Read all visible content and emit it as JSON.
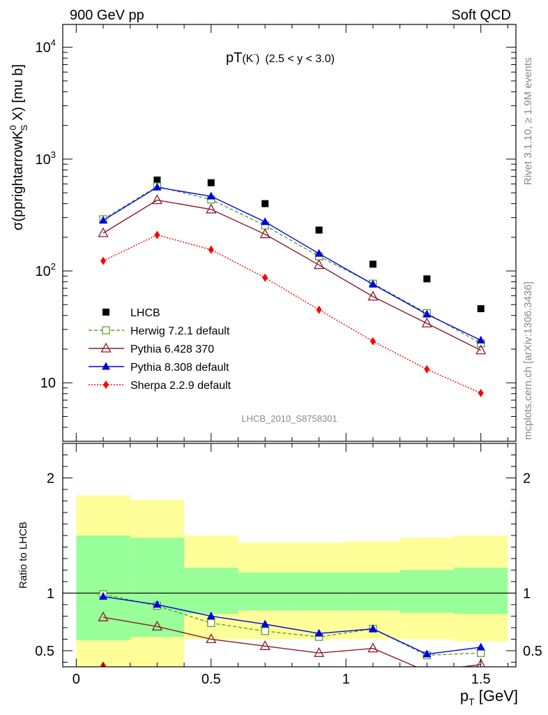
{
  "header": {
    "left": "900 GeV pp",
    "right": "Soft QCD"
  },
  "side_labels": {
    "rivet": "Rivet 3.1.10, ≥ 1.9M events",
    "mcplots": "mcplots.cern.ch [arXiv:1306.3436]"
  },
  "chart_data": [
    {
      "type": "scatter",
      "panel": "main",
      "title": "pT",
      "title_sub": "(K",
      "title_sup": "-",
      "title_close": ")",
      "title_range": "(2.5 < y < 3.0)",
      "ylabel": "σ(pprightarrowK",
      "ylabel_sup": "0",
      "ylabel_sub": "S",
      "ylabel_end": " X) [mu b]",
      "yscale": "log",
      "ylim": [
        3,
        16000
      ],
      "xlim": [
        -0.05,
        1.63
      ],
      "watermark": "LHCB_2010_S8758301",
      "ytick_labels": [
        {
          "value": 10,
          "base": "10",
          "exp": ""
        },
        {
          "value": 100,
          "base": "10",
          "exp": "2"
        },
        {
          "value": 1000,
          "base": "10",
          "exp": "3"
        },
        {
          "value": 10000,
          "base": "10",
          "exp": "4"
        }
      ],
      "legend_position": "lower-left",
      "x": [
        0.1,
        0.3,
        0.5,
        0.7,
        0.9,
        1.1,
        1.3,
        1.5
      ],
      "series": [
        {
          "name": "LHCB",
          "color": "#000000",
          "marker": "square",
          "line": "none",
          "values": [
            290,
            650,
            615,
            400,
            232,
            115,
            85,
            46
          ]
        },
        {
          "name": "Herwig 7.2.1 default",
          "color": "#5aa02c",
          "marker": "open-square",
          "line": "dashed",
          "values": [
            290,
            570,
            435,
            255,
            135,
            77,
            42,
            22.5
          ]
        },
        {
          "name": "Pythia 6.428 370",
          "color": "#8b1a2b",
          "marker": "open-triangle",
          "line": "solid",
          "values": [
            218,
            430,
            355,
            213,
            113,
            59,
            34,
            19.5
          ]
        },
        {
          "name": "Pythia 8.308 default",
          "color": "#0000dd",
          "marker": "triangle",
          "line": "solid",
          "values": [
            283,
            560,
            465,
            275,
            143,
            76,
            41,
            24
          ]
        },
        {
          "name": "Sherpa 2.2.9 default",
          "color": "#ff0000",
          "marker": "diamond",
          "line": "dotted",
          "values": [
            123,
            210,
            155,
            87,
            45,
            23.5,
            13.2,
            8.1
          ]
        }
      ]
    },
    {
      "type": "scatter",
      "panel": "ratio",
      "ylabel": "Ratio to LHCB",
      "xlabel": "p",
      "xlabel_sub": "T",
      "xlabel_end": " [GeV]",
      "ylim": [
        0.36,
        2.3
      ],
      "xlim": [
        -0.05,
        1.63
      ],
      "xtick_labels": [
        {
          "value": 0,
          "label": "0"
        },
        {
          "value": 0.5,
          "label": "0.5"
        },
        {
          "value": 1,
          "label": "1"
        },
        {
          "value": 1.5,
          "label": "1.5"
        }
      ],
      "ytick_labels": [
        {
          "value": 0.5,
          "label": "0.5"
        },
        {
          "value": 1,
          "label": "1"
        },
        {
          "value": 2,
          "label": "2"
        }
      ],
      "bands": {
        "x_edges": [
          0,
          0.2,
          0.4,
          0.6,
          0.8,
          1.0,
          1.2,
          1.4,
          1.6
        ],
        "stat_low": [
          0.59,
          0.62,
          0.82,
          0.85,
          0.85,
          0.85,
          0.83,
          0.82
        ],
        "stat_high": [
          1.5,
          1.48,
          1.22,
          1.18,
          1.18,
          1.18,
          1.2,
          1.22
        ],
        "tot_low": [
          0.3,
          0.3,
          0.6,
          0.6,
          0.6,
          0.6,
          0.6,
          0.58
        ],
        "tot_high": [
          1.85,
          1.81,
          1.5,
          1.44,
          1.44,
          1.45,
          1.48,
          1.5
        ],
        "stat_color": "#99ff99",
        "tot_color": "#ffff99"
      },
      "x": [
        0.1,
        0.3,
        0.5,
        0.7,
        0.9,
        1.1,
        1.3,
        1.5
      ],
      "series": [
        {
          "name": "Herwig 7.2.1 default",
          "color": "#5aa02c",
          "marker": "open-square",
          "line": "dashed",
          "values": [
            0.99,
            0.89,
            0.74,
            0.67,
            0.62,
            0.69,
            0.46,
            0.48
          ]
        },
        {
          "name": "Pythia 6.428 370",
          "color": "#8b1a2b",
          "marker": "open-triangle",
          "line": "solid",
          "values": [
            0.79,
            0.71,
            0.6,
            0.54,
            0.48,
            0.52,
            0.32,
            0.38
          ]
        },
        {
          "name": "Pythia 8.308 default",
          "color": "#0000dd",
          "marker": "triangle",
          "line": "solid",
          "values": [
            0.97,
            0.9,
            0.8,
            0.73,
            0.65,
            0.69,
            0.47,
            0.53
          ]
        },
        {
          "name": "Sherpa 2.2.9 default",
          "color": "#ff0000",
          "marker": "diamond",
          "line": "dotted",
          "values": [
            0.37,
            null,
            null,
            null,
            null,
            null,
            null,
            null
          ]
        }
      ]
    }
  ]
}
